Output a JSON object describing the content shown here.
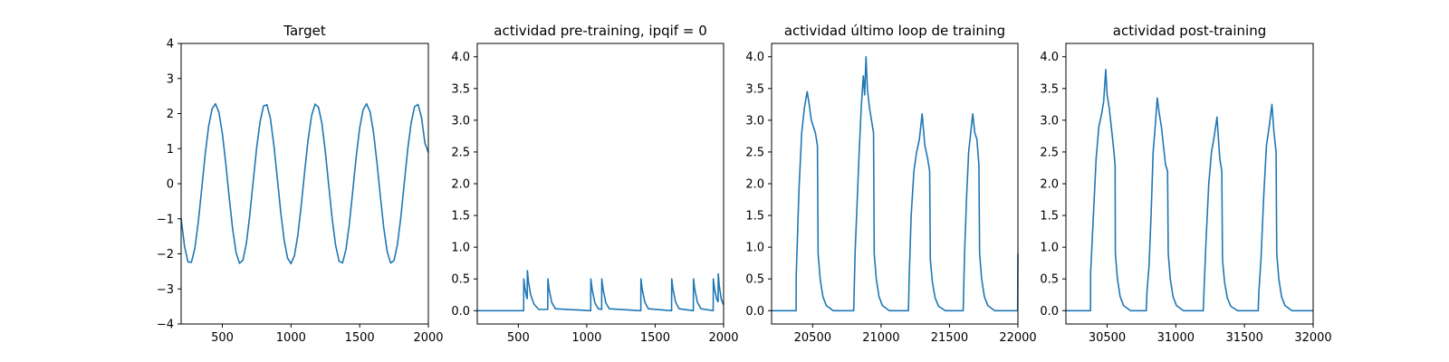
{
  "chart_data": [
    {
      "type": "line",
      "title": "Target",
      "xlim": [
        200,
        2000
      ],
      "ylim": [
        -4,
        4
      ],
      "xticks": [
        500,
        1000,
        1500,
        2000
      ],
      "yticks": [
        -4,
        -3,
        -2,
        -1,
        0,
        1,
        2,
        3,
        4
      ],
      "xticklabels": [
        "500",
        "1000",
        "1500",
        "2000"
      ],
      "yticklabels": [
        "−4",
        "−3",
        "−2",
        "−1",
        "0",
        "1",
        "2",
        "3",
        "4"
      ],
      "grid": false,
      "color": "#1f77b4",
      "series": [
        {
          "x": [
            200,
            225,
            250,
            275,
            300,
            325,
            350,
            375,
            400,
            425,
            450,
            475,
            500,
            525,
            550,
            575,
            600,
            625,
            650,
            675,
            700,
            725,
            750,
            775,
            800,
            825,
            850,
            875,
            900,
            925,
            950,
            975,
            1000,
            1025,
            1050,
            1075,
            1100,
            1125,
            1150,
            1175,
            1200,
            1225,
            1250,
            1275,
            1300,
            1325,
            1350,
            1375,
            1400,
            1425,
            1450,
            1475,
            1500,
            1525,
            1550,
            1575,
            1600,
            1625,
            1650,
            1675,
            1700,
            1725,
            1750,
            1775,
            1800,
            1825,
            1850,
            1875,
            1900,
            1925,
            1950,
            1975,
            2000
          ],
          "y": [
            -0.99,
            -1.79,
            -2.23,
            -2.24,
            -1.84,
            -1.09,
            -0.14,
            0.83,
            1.63,
            2.13,
            2.28,
            2.04,
            1.44,
            0.58,
            -0.39,
            -1.29,
            -1.96,
            -2.27,
            -2.18,
            -1.7,
            -0.89,
            0.08,
            1.03,
            1.77,
            2.22,
            2.25,
            1.86,
            1.11,
            0.16,
            -0.8,
            -1.61,
            -2.12,
            -2.28,
            -2.05,
            -1.46,
            -0.6,
            0.37,
            1.27,
            1.94,
            2.27,
            2.18,
            1.72,
            0.91,
            -0.06,
            -1.01,
            -1.76,
            -2.21,
            -2.26,
            -1.88,
            -1.14,
            -0.19,
            0.78,
            1.59,
            2.11,
            2.28,
            2.06,
            1.48,
            0.63,
            -0.34,
            -1.25,
            -1.93,
            -2.26,
            -2.19,
            -1.73,
            -0.94,
            0.03,
            0.99,
            1.74,
            2.2,
            2.26,
            1.89,
            1.16,
            0.89
          ]
        }
      ]
    },
    {
      "type": "line",
      "title": "actividad pre-training, ipqif = 0",
      "xlim": [
        200,
        2000
      ],
      "ylim": [
        -0.21,
        4.21
      ],
      "xticks": [
        500,
        1000,
        1500,
        2000
      ],
      "yticks": [
        0.0,
        0.5,
        1.0,
        1.5,
        2.0,
        2.5,
        3.0,
        3.5,
        4.0
      ],
      "xticklabels": [
        "500",
        "1000",
        "1500",
        "2000"
      ],
      "yticklabels": [
        "0.0",
        "0.5",
        "1.0",
        "1.5",
        "2.0",
        "2.5",
        "3.0",
        "3.5",
        "4.0"
      ],
      "grid": false,
      "color": "#1f77b4",
      "series": [
        {
          "x": [
            200,
            539,
            540,
            548,
            560,
            565,
            566,
            575,
            590,
            615,
            649,
            715,
            716,
            724,
            744,
            770,
            1029,
            1030,
            1040,
            1060,
            1085,
            1109,
            1110,
            1120,
            1140,
            1165,
            1395,
            1396,
            1405,
            1425,
            1450,
            1620,
            1621,
            1630,
            1650,
            1675,
            1779,
            1780,
            1789,
            1809,
            1834,
            1924,
            1925,
            1934,
            1950,
            1960,
            1961,
            1968,
            1983,
            2000
          ],
          "y": [
            0,
            0,
            0.5,
            0.36,
            0.22,
            0.19,
            0.63,
            0.44,
            0.25,
            0.1,
            0.02,
            0.02,
            0.5,
            0.35,
            0.13,
            0.03,
            0,
            0.5,
            0.33,
            0.12,
            0.03,
            0.02,
            0.5,
            0.33,
            0.12,
            0.03,
            0,
            0.5,
            0.34,
            0.13,
            0.03,
            0,
            0.5,
            0.34,
            0.13,
            0.03,
            0,
            0.5,
            0.34,
            0.13,
            0.03,
            0,
            0.5,
            0.34,
            0.18,
            0.14,
            0.58,
            0.4,
            0.18,
            0.09
          ]
        }
      ]
    },
    {
      "type": "line",
      "title": "actividad último loop de training",
      "xlim": [
        20200,
        22000
      ],
      "ylim": [
        -0.21,
        4.21
      ],
      "xticks": [
        20500,
        21000,
        21500,
        22000
      ],
      "yticks": [
        0.0,
        0.5,
        1.0,
        1.5,
        2.0,
        2.5,
        3.0,
        3.5,
        4.0
      ],
      "xticklabels": [
        "20500",
        "21000",
        "21500",
        "22000"
      ],
      "yticklabels": [
        "0.0",
        "0.5",
        "1.0",
        "1.5",
        "2.0",
        "2.5",
        "3.0",
        "3.5",
        "4.0"
      ],
      "grid": false,
      "color": "#1f77b4",
      "series": [
        {
          "x": [
            20200,
            20379,
            20380,
            20400,
            20420,
            20440,
            20460,
            20475,
            20490,
            20505,
            20520,
            20535,
            20540,
            20555,
            20575,
            20600,
            20650,
            20800,
            20810,
            20825,
            20840,
            20855,
            20870,
            20880,
            20890,
            20900,
            20915,
            20930,
            20945,
            20950,
            20965,
            20985,
            21010,
            21060,
            21200,
            21205,
            21220,
            21240,
            21260,
            21280,
            21300,
            21320,
            21340,
            21355,
            21360,
            21375,
            21395,
            21420,
            21470,
            21600,
            21610,
            21625,
            21640,
            21655,
            21670,
            21685,
            21700,
            21715,
            21720,
            21735,
            21755,
            21780,
            21830,
            21998,
            21999,
            22000
          ],
          "y": [
            0,
            0,
            0.55,
            1.9,
            2.8,
            3.2,
            3.45,
            3.25,
            3.0,
            2.9,
            2.8,
            2.6,
            0.9,
            0.5,
            0.22,
            0.08,
            0,
            0,
            0.9,
            1.7,
            2.5,
            3.2,
            3.7,
            3.4,
            4.0,
            3.5,
            3.2,
            3.0,
            2.8,
            0.9,
            0.5,
            0.22,
            0.08,
            0,
            0,
            0.5,
            1.5,
            2.2,
            2.5,
            2.7,
            3.1,
            2.6,
            2.4,
            2.2,
            0.8,
            0.45,
            0.2,
            0.07,
            0,
            0,
            0.9,
            1.8,
            2.5,
            2.8,
            3.1,
            2.8,
            2.7,
            2.3,
            0.9,
            0.5,
            0.22,
            0.08,
            0,
            0,
            0.5,
            0.9
          ]
        }
      ]
    },
    {
      "type": "line",
      "title": "actividad post-training",
      "xlim": [
        30200,
        32000
      ],
      "ylim": [
        -0.21,
        4.21
      ],
      "xticks": [
        30500,
        31000,
        31500,
        32000
      ],
      "yticks": [
        0.0,
        0.5,
        1.0,
        1.5,
        2.0,
        2.5,
        3.0,
        3.5,
        4.0
      ],
      "xticklabels": [
        "30500",
        "31000",
        "31500",
        "32000"
      ],
      "yticklabels": [
        "0.0",
        "0.5",
        "1.0",
        "1.5",
        "2.0",
        "2.5",
        "3.0",
        "3.5",
        "4.0"
      ],
      "grid": false,
      "color": "#1f77b4",
      "series": [
        {
          "x": [
            30200,
            30379,
            30380,
            30400,
            30420,
            30440,
            30460,
            30475,
            30490,
            30500,
            30515,
            30530,
            30545,
            30558,
            30560,
            30575,
            30595,
            30620,
            30670,
            30785,
            30790,
            30805,
            30820,
            30835,
            30850,
            30865,
            30880,
            30895,
            30910,
            30925,
            30940,
            30945,
            30960,
            30980,
            31005,
            31055,
            31200,
            31205,
            31220,
            31240,
            31260,
            31280,
            31300,
            31320,
            31335,
            31340,
            31355,
            31375,
            31400,
            31450,
            31600,
            31605,
            31620,
            31640,
            31660,
            31680,
            31700,
            31715,
            31730,
            31735,
            31750,
            31770,
            31795,
            31845,
            32000
          ],
          "y": [
            0,
            0,
            0.6,
            1.5,
            2.4,
            2.9,
            3.1,
            3.3,
            3.8,
            3.4,
            3.2,
            2.9,
            2.6,
            2.3,
            0.9,
            0.5,
            0.22,
            0.08,
            0,
            0,
            0.3,
            0.7,
            1.5,
            2.5,
            2.9,
            3.35,
            3.1,
            2.9,
            2.6,
            2.3,
            2.2,
            0.9,
            0.5,
            0.22,
            0.08,
            0,
            0,
            0.3,
            1.1,
            2.0,
            2.5,
            2.75,
            3.05,
            2.4,
            2.2,
            0.8,
            0.45,
            0.2,
            0.07,
            0,
            0,
            0.3,
            0.8,
            1.8,
            2.6,
            2.9,
            3.25,
            2.8,
            2.5,
            0.9,
            0.5,
            0.22,
            0.08,
            0,
            0
          ]
        }
      ]
    }
  ]
}
